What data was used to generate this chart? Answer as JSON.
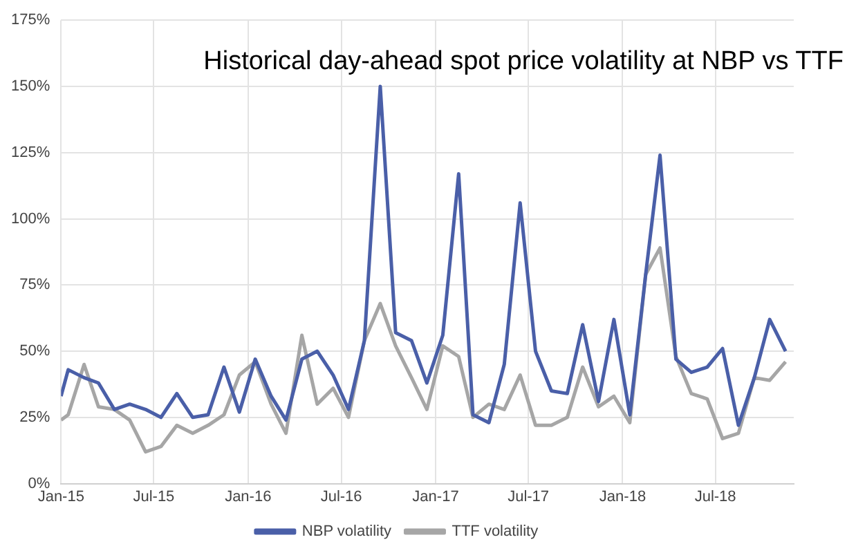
{
  "chart_data": {
    "type": "line",
    "title": "Historical day-ahead spot price volatility at NBP vs TTF",
    "x": [
      "2015-01-01",
      "2015-01-15",
      "2015-02-15",
      "2015-03-15",
      "2015-04-15",
      "2015-05-15",
      "2015-06-15",
      "2015-07-15",
      "2015-08-15",
      "2015-09-15",
      "2015-10-15",
      "2015-11-15",
      "2015-12-15",
      "2016-01-15",
      "2016-02-15",
      "2016-03-15",
      "2016-04-15",
      "2016-05-15",
      "2016-06-15",
      "2016-07-15",
      "2016-08-15",
      "2016-09-15",
      "2016-10-15",
      "2016-11-15",
      "2016-12-15",
      "2017-01-15",
      "2017-02-15",
      "2017-03-15",
      "2017-04-15",
      "2017-05-15",
      "2017-06-15",
      "2017-07-15",
      "2017-08-15",
      "2017-09-15",
      "2017-10-15",
      "2017-11-15",
      "2017-12-15",
      "2018-01-15",
      "2018-02-15",
      "2018-03-15",
      "2018-04-15",
      "2018-05-15",
      "2018-06-15",
      "2018-07-15",
      "2018-08-15",
      "2018-09-15",
      "2018-10-15",
      "2018-11-15"
    ],
    "series": [
      {
        "name": "NBP volatility",
        "color": "#4a5fa8",
        "values": [
          33,
          43,
          40,
          38,
          28,
          30,
          28,
          25,
          34,
          25,
          26,
          44,
          27,
          47,
          33,
          24,
          47,
          50,
          41,
          28,
          54,
          150,
          57,
          54,
          38,
          56,
          117,
          26,
          23,
          45,
          106,
          50,
          35,
          34,
          60,
          31,
          62,
          26,
          79,
          124,
          47,
          42,
          44,
          51,
          22,
          40,
          62,
          50
        ]
      },
      {
        "name": "TTF volatility",
        "color": "#a6a6a6",
        "values": [
          24,
          26,
          45,
          29,
          28,
          24,
          12,
          14,
          22,
          19,
          22,
          26,
          41,
          46,
          30,
          19,
          56,
          30,
          36,
          25,
          54,
          68,
          52,
          40,
          28,
          52,
          48,
          25,
          30,
          28,
          41,
          22,
          22,
          25,
          44,
          29,
          33,
          23,
          79,
          89,
          48,
          34,
          32,
          17,
          19,
          40,
          39,
          46
        ]
      }
    ],
    "xlim": [
      "2015-01",
      "2018-12"
    ],
    "xticks": [
      {
        "value": "2015-01",
        "label": "Jan-15"
      },
      {
        "value": "2015-07",
        "label": "Jul-15"
      },
      {
        "value": "2016-01",
        "label": "Jan-16"
      },
      {
        "value": "2016-07",
        "label": "Jul-16"
      },
      {
        "value": "2017-01",
        "label": "Jan-17"
      },
      {
        "value": "2017-07",
        "label": "Jul-17"
      },
      {
        "value": "2018-01",
        "label": "Jan-18"
      },
      {
        "value": "2018-07",
        "label": "Jul-18"
      }
    ],
    "ylim": [
      0,
      175
    ],
    "yticks": [
      {
        "value": 0,
        "label": "0%"
      },
      {
        "value": 25,
        "label": "25%"
      },
      {
        "value": 50,
        "label": "50%"
      },
      {
        "value": 75,
        "label": "75%"
      },
      {
        "value": 100,
        "label": "100%"
      },
      {
        "value": 125,
        "label": "125%"
      },
      {
        "value": 150,
        "label": "150%"
      },
      {
        "value": 175,
        "label": "175%"
      }
    ],
    "grid": true,
    "legend": "bottom",
    "marker": "none",
    "line_style": "solid"
  }
}
